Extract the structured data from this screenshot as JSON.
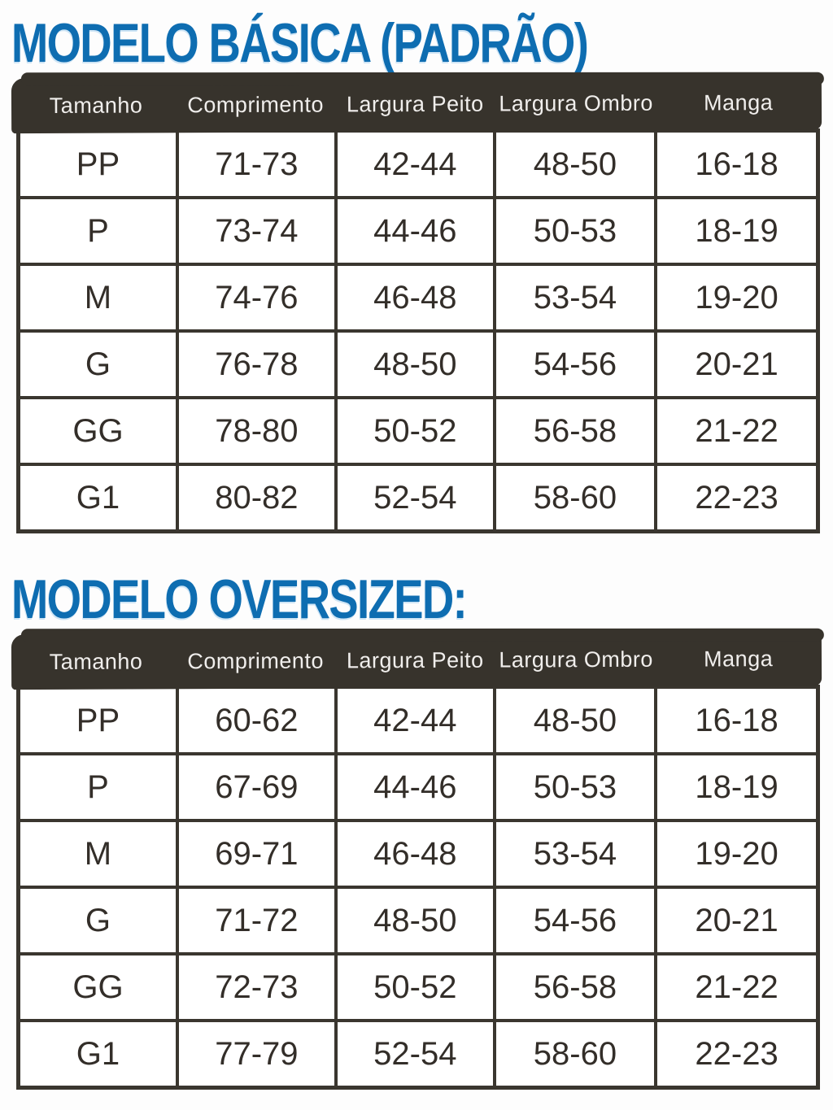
{
  "colors": {
    "page_bg": "#fdfdfd",
    "title_blue": "#0e6db1",
    "bar_dark": "#37332c",
    "border_dark": "#3a362f",
    "header_text": "#f0eeec",
    "cell_text": "#332e29"
  },
  "sections": [
    {
      "title": "MODELO BÁSICA (PADRÃO)",
      "table": {
        "columns": [
          "Tamanho",
          "Comprimento",
          "Largura Peito",
          "Largura Ombro",
          "Manga"
        ],
        "rows": [
          [
            "PP",
            "71-73",
            "42-44",
            "48-50",
            "16-18"
          ],
          [
            "P",
            "73-74",
            "44-46",
            "50-53",
            "18-19"
          ],
          [
            "M",
            "74-76",
            "46-48",
            "53-54",
            "19-20"
          ],
          [
            "G",
            "76-78",
            "48-50",
            "54-56",
            "20-21"
          ],
          [
            "GG",
            "78-80",
            "50-52",
            "56-58",
            "21-22"
          ],
          [
            "G1",
            "80-82",
            "52-54",
            "58-60",
            "22-23"
          ]
        ]
      }
    },
    {
      "title": "MODELO OVERSIZED:",
      "table": {
        "columns": [
          "Tamanho",
          "Comprimento",
          "Largura Peito",
          "Largura Ombro",
          "Manga"
        ],
        "rows": [
          [
            "PP",
            "60-62",
            "42-44",
            "48-50",
            "16-18"
          ],
          [
            "P",
            "67-69",
            "44-46",
            "50-53",
            "18-19"
          ],
          [
            "M",
            "69-71",
            "46-48",
            "53-54",
            "19-20"
          ],
          [
            "G",
            "71-72",
            "48-50",
            "54-56",
            "20-21"
          ],
          [
            "GG",
            "72-73",
            "50-52",
            "56-58",
            "21-22"
          ],
          [
            "G1",
            "77-79",
            "52-54",
            "58-60",
            "22-23"
          ]
        ]
      }
    }
  ],
  "chart_data": [
    {
      "type": "table",
      "title": "MODELO BÁSICA (PADRÃO)",
      "columns": [
        "Tamanho",
        "Comprimento",
        "Largura Peito",
        "Largura Ombro",
        "Manga"
      ],
      "rows": [
        [
          "PP",
          "71-73",
          "42-44",
          "48-50",
          "16-18"
        ],
        [
          "P",
          "73-74",
          "44-46",
          "50-53",
          "18-19"
        ],
        [
          "M",
          "74-76",
          "46-48",
          "53-54",
          "19-20"
        ],
        [
          "G",
          "76-78",
          "48-50",
          "54-56",
          "20-21"
        ],
        [
          "GG",
          "78-80",
          "50-52",
          "56-58",
          "21-22"
        ],
        [
          "G1",
          "80-82",
          "52-54",
          "58-60",
          "22-23"
        ]
      ]
    },
    {
      "type": "table",
      "title": "MODELO OVERSIZED:",
      "columns": [
        "Tamanho",
        "Comprimento",
        "Largura Peito",
        "Largura Ombro",
        "Manga"
      ],
      "rows": [
        [
          "PP",
          "60-62",
          "42-44",
          "48-50",
          "16-18"
        ],
        [
          "P",
          "67-69",
          "44-46",
          "50-53",
          "18-19"
        ],
        [
          "M",
          "69-71",
          "46-48",
          "53-54",
          "19-20"
        ],
        [
          "G",
          "71-72",
          "48-50",
          "54-56",
          "20-21"
        ],
        [
          "GG",
          "72-73",
          "50-52",
          "56-58",
          "21-22"
        ],
        [
          "G1",
          "77-79",
          "52-54",
          "58-60",
          "22-23"
        ]
      ]
    }
  ]
}
